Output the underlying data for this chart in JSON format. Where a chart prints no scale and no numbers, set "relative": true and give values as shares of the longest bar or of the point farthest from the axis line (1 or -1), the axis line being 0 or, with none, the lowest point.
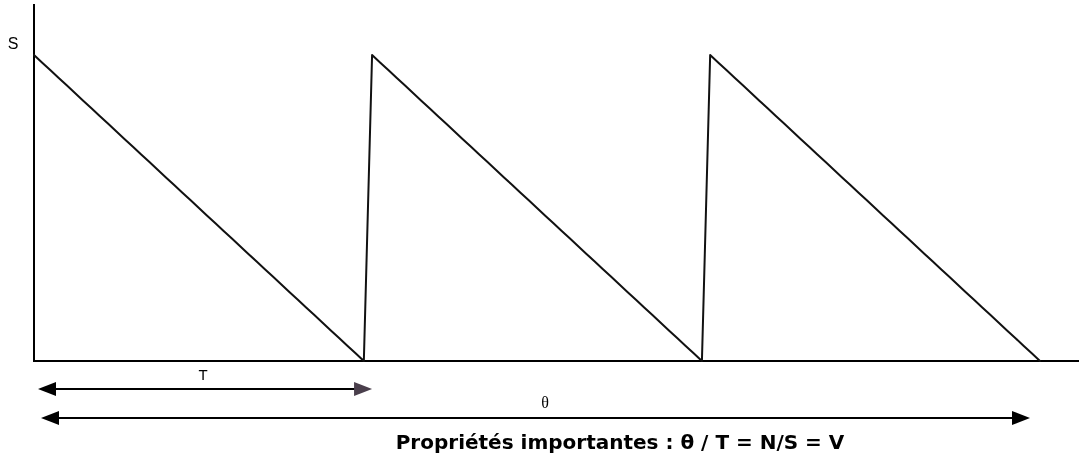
{
  "chart_data": {
    "type": "line",
    "relative": true,
    "categories": [
      null,
      null,
      null,
      null,
      null,
      null,
      null,
      null,
      null,
      null,
      null,
      null,
      null,
      null,
      null,
      null,
      null,
      null,
      null,
      null,
      null,
      null,
      null,
      null,
      null,
      null,
      null,
      null,
      null,
      null,
      null,
      null,
      null,
      null,
      null,
      null,
      null,
      null,
      null,
      null,
      null,
      null,
      null,
      null,
      null,
      null,
      null,
      null,
      null,
      null,
      null,
      null,
      null,
      null,
      null,
      null,
      null,
      null,
      null,
      null,
      null,
      null,
      null,
      null,
      null,
      null,
      null,
      null,
      null,
      null,
      null,
      null,
      null,
      null,
      null,
      null,
      null,
      null,
      null,
      null,
      null,
      null,
      null,
      null,
      null,
      null,
      null,
      null,
      null,
      null,
      null,
      null,
      null,
      null,
      null,
      null,
      null,
      null,
      null,
      null,
      null,
      null,
      null,
      null,
      null,
      null,
      null,
      null,
      null,
      null,
      null,
      null,
      null,
      null,
      null,
      null,
      null,
      null,
      null,
      null,
      null,
      null,
      null
    ],
    "ylabel": "S",
    "color": "#111111",
    "line_style": "solid",
    "values": [
      1,
      0.975,
      0.95,
      0.925,
      0.9,
      0.875,
      0.85,
      0.825,
      0.8,
      0.775,
      0.75,
      0.725,
      0.7,
      0.675,
      0.65,
      0.625,
      0.6,
      0.575,
      0.55,
      0.525,
      0.5,
      0.475,
      0.45,
      0.425,
      0.4,
      0.375,
      0.35,
      0.325,
      0.3,
      0.275,
      0.25,
      0.225,
      0.2,
      0.175,
      0.15,
      0.125,
      0.1,
      0.075,
      0.05,
      0.025,
      0,
      1,
      0.975,
      0.95,
      0.925,
      0.9,
      0.875,
      0.85,
      0.825,
      0.8,
      0.775,
      0.75,
      0.725,
      0.7,
      0.675,
      0.65,
      0.625,
      0.6,
      0.575,
      0.55,
      0.525,
      0.5,
      0.475,
      0.45,
      0.425,
      0.4,
      0.375,
      0.35,
      0.325,
      0.3,
      0.275,
      0.25,
      0.225,
      0.2,
      0.175,
      0.15,
      0.125,
      0.1,
      0.075,
      0.05,
      0.025,
      0,
      1,
      0.975,
      0.95,
      0.925,
      0.9,
      0.875,
      0.85,
      0.825,
      0.8,
      0.775,
      0.75,
      0.725,
      0.7,
      0.675,
      0.65,
      0.625,
      0.6,
      0.575,
      0.55,
      0.525,
      0.5,
      0.475,
      0.45,
      0.425,
      0.4,
      0.375,
      0.35,
      0.325,
      0.3,
      0.275,
      0.25,
      0.225,
      0.2,
      0.175,
      0.15,
      0.125,
      0.1,
      0.075,
      0.05,
      0.025,
      0
    ],
    "annotations": [
      "T",
      "θ",
      "Propriétés importantes : θ / T = N/S = V"
    ]
  }
}
